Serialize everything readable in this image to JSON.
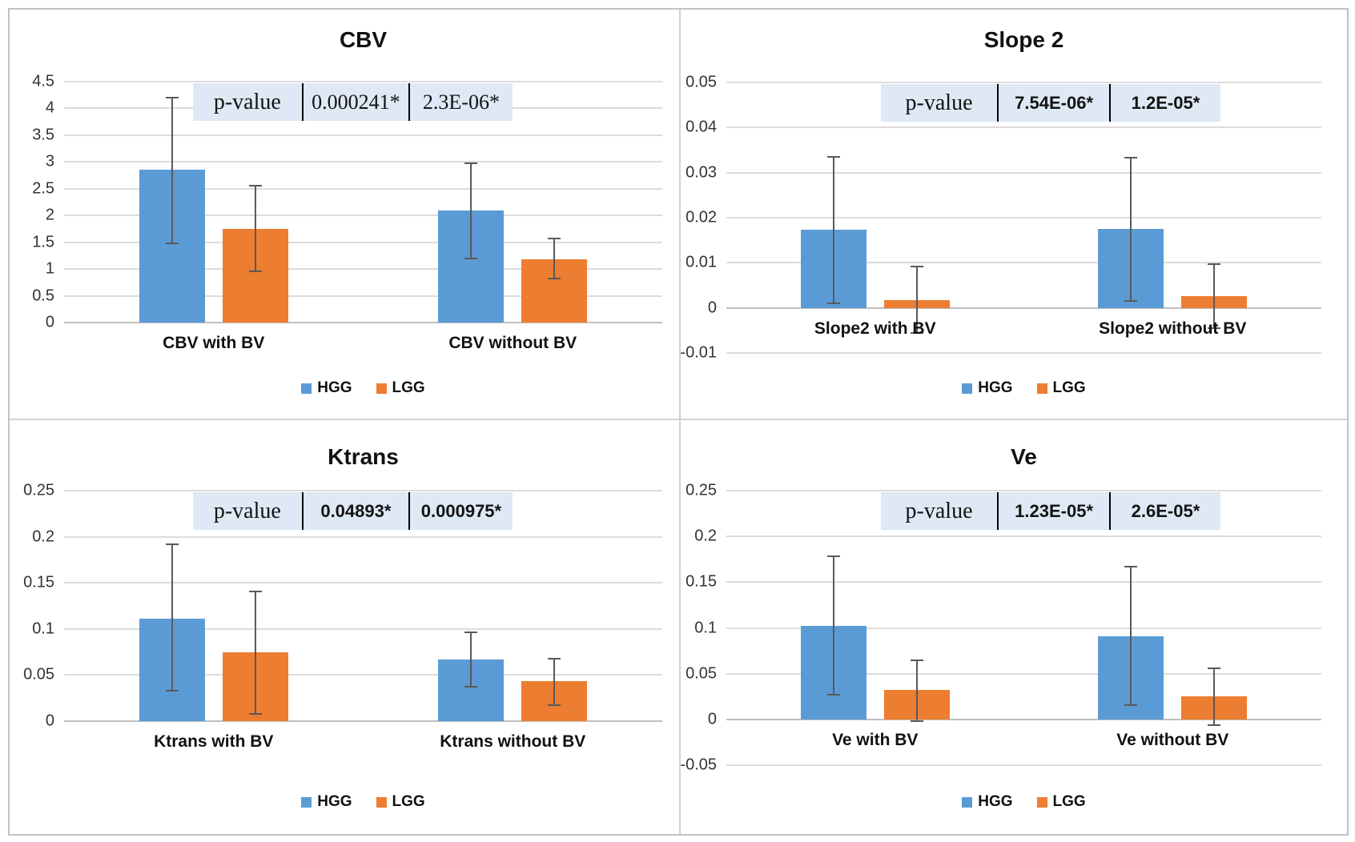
{
  "colors": {
    "hgg": "#5B9BD5",
    "lgg": "#ED7D31",
    "pvalue_fill": "#dee9f5",
    "gridline": "#dcdcdc",
    "axis_line": "#bfbfbf",
    "error_bar": "#595959"
  },
  "legend": {
    "items": [
      {
        "label": "HGG",
        "color": "#5B9BD5"
      },
      {
        "label": "LGG",
        "color": "#ED7D31"
      }
    ]
  },
  "chart_data": [
    {
      "id": "cbv",
      "type": "bar",
      "title": "CBV",
      "categories": [
        "CBV with BV",
        "CBV without BV"
      ],
      "series": [
        {
          "name": "HGG",
          "values": [
            2.85,
            2.1
          ],
          "error_low": [
            1.48,
            1.2
          ],
          "error_high": [
            4.2,
            2.98
          ]
        },
        {
          "name": "LGG",
          "values": [
            1.75,
            1.18
          ],
          "error_low": [
            0.96,
            0.82
          ],
          "error_high": [
            2.55,
            1.57
          ]
        }
      ],
      "ylim": [
        0,
        4.5
      ],
      "yticks": [
        0,
        0.5,
        1,
        1.5,
        2,
        2.5,
        3,
        3.5,
        4,
        4.5
      ],
      "ytick_labels": [
        "0",
        "0.5",
        "1",
        "1.5",
        "2",
        "2.5",
        "3",
        "3.5",
        "4",
        "4.5"
      ],
      "grid": true,
      "legend_position": "bottom",
      "p_value_row": {
        "label": "p-value",
        "values": [
          "0.000241*",
          "2.3E-06*"
        ]
      }
    },
    {
      "id": "slope2",
      "type": "bar",
      "title": "Slope 2",
      "categories": [
        "Slope2 with BV",
        "Slope2 without BV"
      ],
      "series": [
        {
          "name": "HGG",
          "values": [
            0.0173,
            0.0175
          ],
          "error_low": [
            0.001,
            0.0015
          ],
          "error_high": [
            0.0335,
            0.0333
          ]
        },
        {
          "name": "LGG",
          "values": [
            0.0018,
            0.0026
          ],
          "error_low": [
            -0.0055,
            -0.0045
          ],
          "error_high": [
            0.0092,
            0.0097
          ]
        }
      ],
      "ylim": [
        -0.01,
        0.05
      ],
      "yticks": [
        -0.01,
        0,
        0.01,
        0.02,
        0.03,
        0.04,
        0.05
      ],
      "ytick_labels": [
        "-0.01",
        "0",
        "0.01",
        "0.02",
        "0.03",
        "0.04",
        "0.05"
      ],
      "grid": true,
      "legend_position": "bottom",
      "p_value_row": {
        "label": "p-value",
        "values": [
          "7.54E-06*",
          "1.2E-05*"
        ]
      }
    },
    {
      "id": "ktrans",
      "type": "bar",
      "title": "Ktrans",
      "categories": [
        "Ktrans with BV",
        "Ktrans without BV"
      ],
      "series": [
        {
          "name": "HGG",
          "values": [
            0.111,
            0.067
          ],
          "error_low": [
            0.033,
            0.037
          ],
          "error_high": [
            0.192,
            0.096
          ]
        },
        {
          "name": "LGG",
          "values": [
            0.075,
            0.043
          ],
          "error_low": [
            0.008,
            0.017
          ],
          "error_high": [
            0.141,
            0.068
          ]
        }
      ],
      "ylim": [
        0,
        0.25
      ],
      "yticks": [
        0,
        0.05,
        0.1,
        0.15,
        0.2,
        0.25
      ],
      "ytick_labels": [
        "0",
        "0.05",
        "0.1",
        "0.15",
        "0.2",
        "0.25"
      ],
      "grid": true,
      "legend_position": "bottom",
      "p_value_row": {
        "label": "p-value",
        "values": [
          "0.04893*",
          "0.000975*"
        ]
      }
    },
    {
      "id": "ve",
      "type": "bar",
      "title": "Ve",
      "categories": [
        "Ve with BV",
        "Ve without BV"
      ],
      "series": [
        {
          "name": "HGG",
          "values": [
            0.102,
            0.091
          ],
          "error_low": [
            0.027,
            0.016
          ],
          "error_high": [
            0.178,
            0.167
          ]
        },
        {
          "name": "LGG",
          "values": [
            0.032,
            0.025
          ],
          "error_low": [
            -0.002,
            -0.006
          ],
          "error_high": [
            0.065,
            0.056
          ]
        }
      ],
      "ylim": [
        -0.05,
        0.25
      ],
      "yticks": [
        -0.05,
        0,
        0.05,
        0.1,
        0.15,
        0.2,
        0.25
      ],
      "ytick_labels": [
        "-0.05",
        "0",
        "0.05",
        "0.1",
        "0.15",
        "0.2",
        "0.25"
      ],
      "grid": true,
      "legend_position": "bottom",
      "p_value_row": {
        "label": "p-value",
        "values": [
          "1.23E-05*",
          "2.6E-05*"
        ]
      }
    }
  ]
}
